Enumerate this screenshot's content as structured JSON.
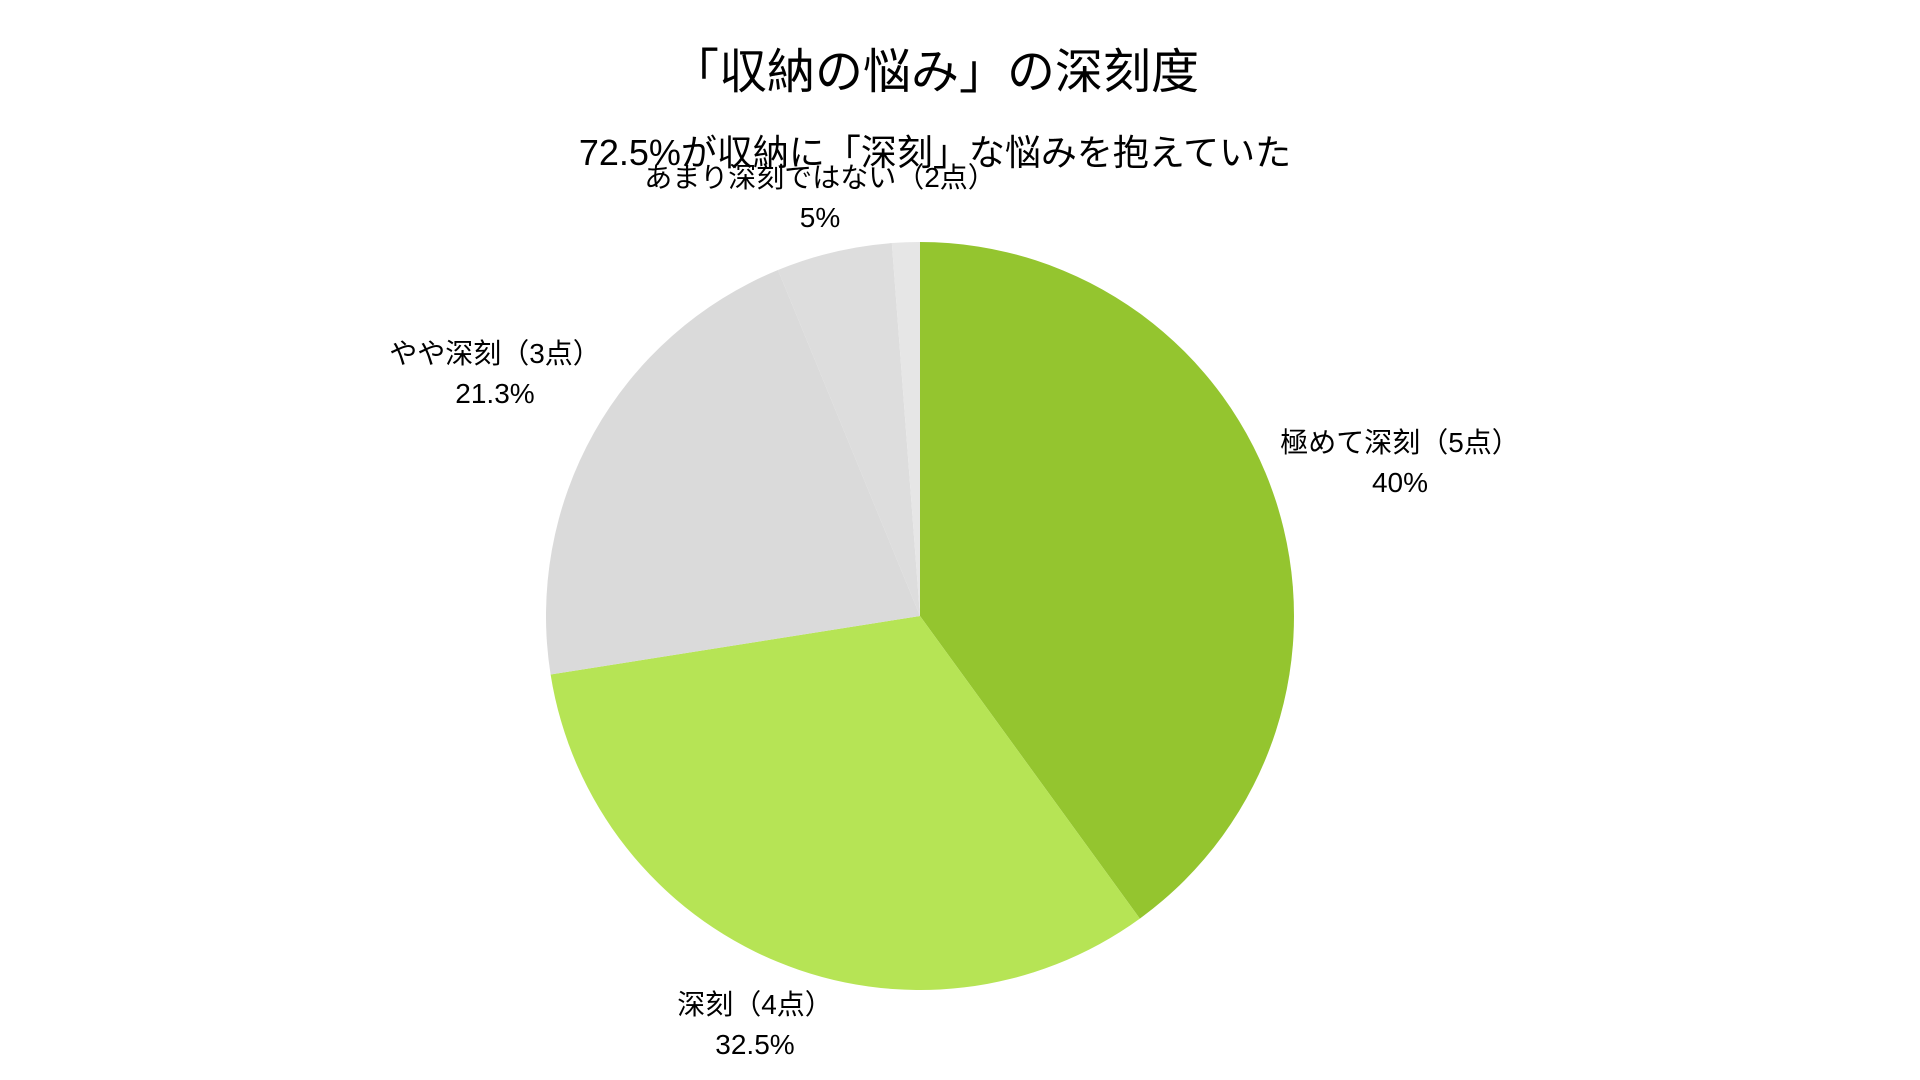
{
  "colors": {
    "background": "#FFFFFF",
    "text": "#000000"
  },
  "chart_data": {
    "type": "pie",
    "title": "「収納の悩み」の深刻度",
    "subtitle": "72.5%が収納に「深刻」な悩みを抱えていた",
    "legend": "none",
    "start_angle_deg": 0,
    "direction": "clockwise",
    "total_percent": 100,
    "slices": [
      {
        "label": "極めて深刻（5点）",
        "value": 40.0,
        "display": "40%",
        "color": "#94C52F"
      },
      {
        "label": "深刻（4点）",
        "value": 32.5,
        "display": "32.5%",
        "color": "#B6E455"
      },
      {
        "label": "やや深刻（3点）",
        "value": 21.3,
        "display": "21.3%",
        "color": "#DADADA"
      },
      {
        "label": "あまり深刻ではない（2点）",
        "value": 5.0,
        "display": "5%",
        "color": "#DDDDDD"
      },
      {
        "label": "",
        "value": 1.2,
        "display": "",
        "color": "#E6E6E6",
        "unlabeled": true
      }
    ]
  }
}
